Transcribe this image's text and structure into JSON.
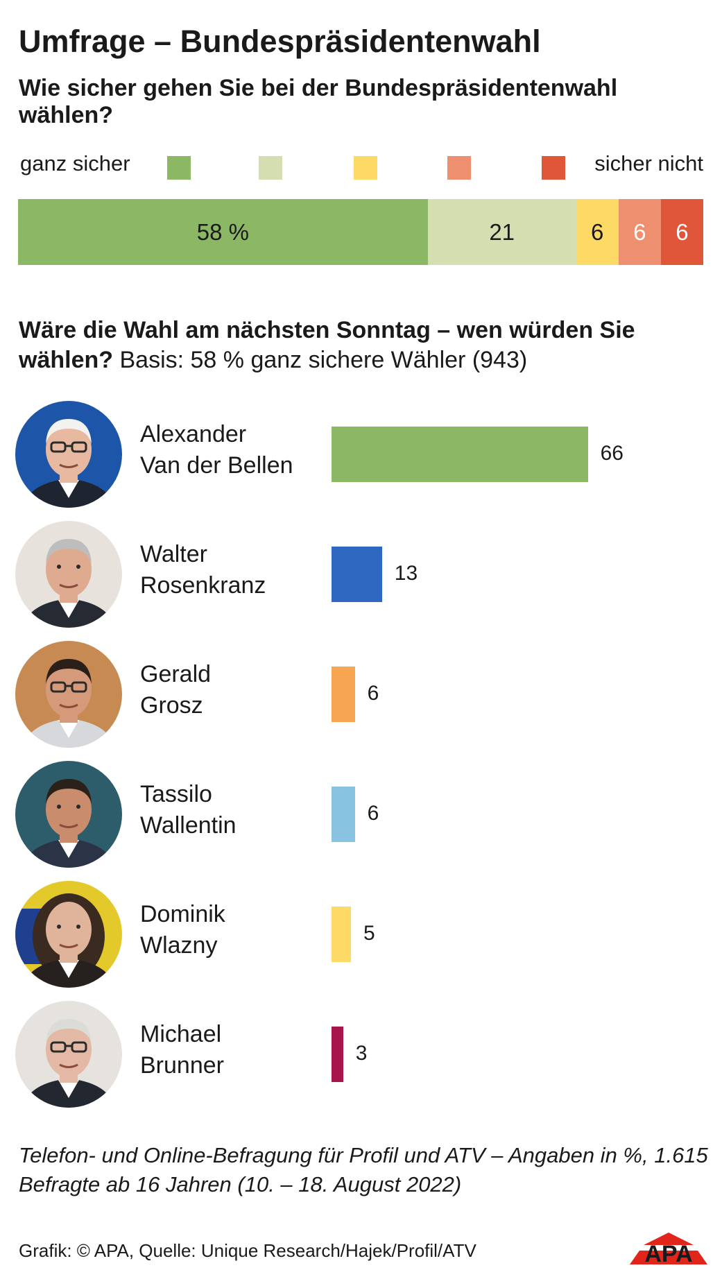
{
  "title": "Umfrage – Bundespräsidentenwahl",
  "question1": "Wie sicher gehen Sie bei der Bundespräsidentenwahl wählen?",
  "legend": {
    "left_label": "ganz sicher",
    "right_label": "sicher nicht",
    "colors": [
      "#8cb865",
      "#d4deb1",
      "#fdd965",
      "#ee9070",
      "#e05638"
    ]
  },
  "question2_bold": "Wäre die Wahl am nächsten Sonntag – wen würden Sie wählen?",
  "question2_normal": " Basis: 58 % ganz sichere Wähler (943)",
  "footnote": "Telefon- und Online-Befragung für Profil und ATV – Angaben in %, 1.615 Befragte ab 16 Jahren (10. – 18. August 2022)",
  "credit": "Grafik: © APA, Quelle: Unique Research/Hajek/Profil/ATV",
  "logo_text": "APA",
  "chart_data": [
    {
      "type": "bar",
      "orientation": "horizontal",
      "stacked": true,
      "categories": [
        "ganz sicher",
        "",
        "",
        "",
        "sicher nicht"
      ],
      "values": [
        58,
        21,
        6,
        6,
        6
      ],
      "value_labels": [
        "58 %",
        "21",
        "6",
        "6",
        "6"
      ],
      "colors": [
        "#8cb865",
        "#d4deb1",
        "#fdd965",
        "#ee9070",
        "#e05638"
      ],
      "xlim": [
        0,
        97
      ]
    },
    {
      "type": "bar",
      "orientation": "horizontal",
      "categories": [
        [
          "Alexander",
          "Van der Bellen"
        ],
        [
          "Walter",
          "Rosenkranz"
        ],
        [
          "Gerald",
          "Grosz"
        ],
        [
          "Tassilo",
          "Wallentin"
        ],
        [
          "Dominik",
          "Wlazny"
        ],
        [
          "Michael",
          "Brunner"
        ]
      ],
      "values": [
        66,
        13,
        6,
        6,
        5,
        3
      ],
      "colors": [
        "#8cb865",
        "#2f68c0",
        "#f6a553",
        "#88c3e2",
        "#fdd965",
        "#a8154d"
      ],
      "photo_icons": [
        "portrait-van-der-bellen",
        "portrait-rosenkranz",
        "portrait-grosz",
        "portrait-wallentin",
        "portrait-wlazny",
        "portrait-brunner"
      ],
      "xlim": [
        0,
        100
      ]
    }
  ]
}
